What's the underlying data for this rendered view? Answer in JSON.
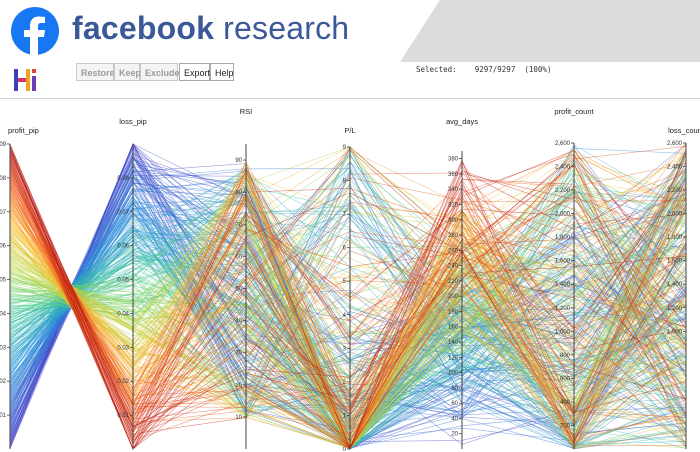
{
  "banner": {
    "brand_bold": "facebook",
    "brand_light": " research",
    "logo_icon": "facebook-f-icon",
    "colors": {
      "brand": "#3b5998",
      "logo_circle": "#1877f2",
      "banner_bg": "#e9e9e9"
    }
  },
  "toolbar": {
    "logo_icon": "hiplot-hi-icon",
    "buttons": [
      {
        "label": "Restore",
        "enabled": false
      },
      {
        "label": "Keep",
        "enabled": false
      },
      {
        "label": "Exclude",
        "enabled": false
      },
      {
        "label": "Export",
        "enabled": true
      },
      {
        "label": "Help",
        "enabled": true
      }
    ],
    "selected_label": "Selected:",
    "selected_count": "9297/9297",
    "selected_pct": "(100%)"
  },
  "chart_data": {
    "type": "parallel_coordinates",
    "line_count_selected": 9297,
    "line_count_total": 9297,
    "color_by": "profit_pip",
    "colormap": "spectral-red-to-blue",
    "axes": [
      {
        "name": "profit_pip",
        "range": [
          0,
          0.09
        ],
        "ticks": [
          "0.09",
          "0.08",
          "0.07",
          "0.06",
          "0.05",
          "0.04",
          "0.03",
          "0.02",
          "0.01"
        ]
      },
      {
        "name": "loss_pip",
        "range": [
          0,
          0.09
        ],
        "ticks": [
          "0.08",
          "0.07",
          "0.06",
          "0.05",
          "0.04",
          "0.03",
          "0.02",
          "0.01"
        ]
      },
      {
        "name": "RSI",
        "range": [
          0,
          95
        ],
        "ticks": [
          "90",
          "80",
          "70",
          "60",
          "50",
          "40",
          "30",
          "20",
          "10"
        ]
      },
      {
        "name": "P/L",
        "range": [
          0,
          9
        ],
        "ticks": [
          "9",
          "8",
          "7",
          "6",
          "5",
          "4",
          "3",
          "2",
          "1",
          "0"
        ]
      },
      {
        "name": "avg_days",
        "range": [
          0,
          390
        ],
        "ticks": [
          "380",
          "360",
          "340",
          "320",
          "300",
          "280",
          "260",
          "240",
          "220",
          "200",
          "180",
          "160",
          "140",
          "120",
          "100",
          "80",
          "60",
          "40",
          "20"
        ]
      },
      {
        "name": "profit_count",
        "range": [
          0,
          2600
        ],
        "ticks": [
          "2,600",
          "2,400",
          "2,200",
          "2,000",
          "1,800",
          "1,600",
          "1,400",
          "1,200",
          "1,000",
          "800",
          "600",
          "400",
          "200"
        ]
      },
      {
        "name": "loss_count",
        "range": [
          0,
          2600
        ],
        "ticks": [
          "2,600",
          "2,400",
          "2,200",
          "2,000",
          "1,800",
          "1,600",
          "1,400",
          "1,200",
          "1,000"
        ]
      }
    ]
  }
}
